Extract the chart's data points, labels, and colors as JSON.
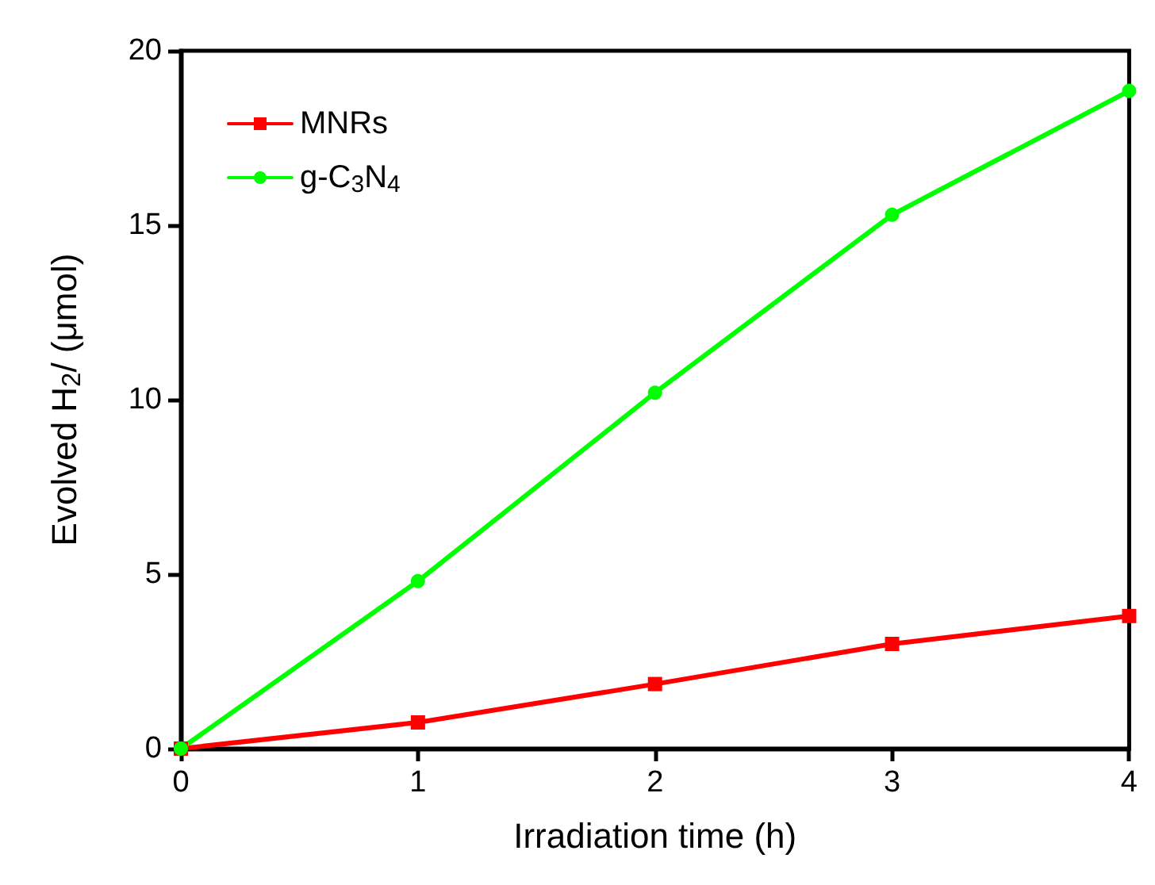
{
  "chart_data": {
    "type": "line",
    "xlabel": "Irradiation time (h)",
    "ylabel": "Evolved H$_{2}$/ (μmol)",
    "x": [
      0,
      1,
      2,
      3,
      4
    ],
    "series": [
      {
        "name": "MNRs",
        "color": "#ff0000",
        "marker": "square",
        "values": [
          0,
          0.75,
          1.85,
          3.0,
          3.8
        ]
      },
      {
        "name": "g-C$_{3}$N$_{4}$",
        "color": "#00ff00",
        "marker": "circle",
        "values": [
          0,
          4.8,
          10.2,
          15.3,
          18.85
        ]
      }
    ],
    "xlim": [
      0,
      4
    ],
    "xticks": [
      0,
      1,
      2,
      3,
      4
    ],
    "ylim": [
      0,
      20
    ],
    "yticks": [
      0,
      5,
      10,
      15,
      20
    ],
    "grid": false,
    "legend": "top left",
    "line_style": "solid"
  }
}
